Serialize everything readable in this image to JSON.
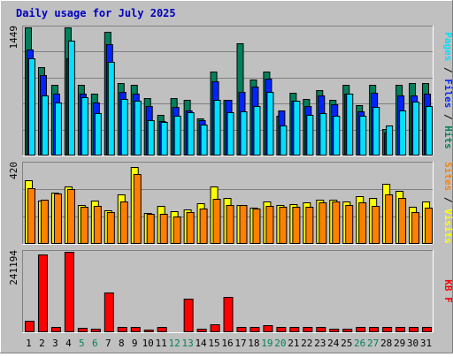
{
  "chart_data": [
    {
      "type": "bar",
      "title": "Daily usage for July 2025",
      "categories": [
        "1",
        "2",
        "3",
        "4",
        "5",
        "6",
        "7",
        "8",
        "9",
        "10",
        "11",
        "12",
        "13",
        "14",
        "15",
        "16",
        "17",
        "18",
        "19",
        "20",
        "21",
        "22",
        "23",
        "24",
        "25",
        "26",
        "27",
        "28",
        "29",
        "30",
        "31"
      ],
      "weekend_days": [
        "5",
        "6",
        "12",
        "13",
        "19",
        "20",
        "26",
        "27"
      ],
      "y_max_label": "1449",
      "ylim": [
        0,
        1449
      ],
      "legend": [
        "Pages",
        "Files",
        "Hits"
      ],
      "series": [
        {
          "name": "Hits",
          "color": "#00805c",
          "values": [
            1449,
            1000,
            800,
            1449,
            795,
            700,
            1400,
            815,
            795,
            645,
            455,
            645,
            630,
            420,
            945,
            630,
            1270,
            860,
            950,
            445,
            710,
            640,
            740,
            630,
            795,
            565,
            795,
            300,
            800,
            820,
            820
          ]
        },
        {
          "name": "Files",
          "color": "#0024ff",
          "values": [
            1200,
            905,
            700,
            1100,
            700,
            600,
            1260,
            715,
            700,
            555,
            390,
            545,
            510,
            395,
            840,
            630,
            715,
            780,
            870,
            505,
            620,
            555,
            680,
            580,
            700,
            500,
            705,
            260,
            680,
            680,
            700
          ]
        },
        {
          "name": "Pages",
          "color": "#00e0ff",
          "values": [
            1100,
            675,
            595,
            1300,
            655,
            480,
            1060,
            640,
            620,
            400,
            375,
            445,
            490,
            345,
            630,
            490,
            500,
            560,
            715,
            335,
            615,
            455,
            480,
            450,
            700,
            450,
            550,
            335,
            505,
            605,
            560
          ]
        }
      ]
    },
    {
      "type": "bar",
      "y_max_label": "420",
      "ylim": [
        0,
        420
      ],
      "legend": [
        "Sites",
        "Visits"
      ],
      "series": [
        {
          "name": "Visits",
          "color": "#ffff00",
          "values": [
            330,
            228,
            268,
            299,
            202,
            227,
            177,
            258,
            402,
            163,
            199,
            173,
            178,
            213,
            299,
            240,
            204,
            187,
            220,
            201,
            208,
            218,
            232,
            230,
            221,
            250,
            238,
            316,
            278,
            195,
            220
          ]
        },
        {
          "name": "Sites",
          "color": "#ff8000",
          "values": [
            290,
            232,
            262,
            287,
            193,
            200,
            166,
            223,
            364,
            155,
            156,
            144,
            165,
            184,
            237,
            205,
            202,
            184,
            198,
            196,
            192,
            194,
            217,
            221,
            205,
            218,
            199,
            260,
            240,
            166,
            187
          ]
        }
      ]
    },
    {
      "type": "bar",
      "y_max_label": "241194",
      "ylim": [
        0,
        241194
      ],
      "legend": [
        "KB F"
      ],
      "series": [
        {
          "name": "KB F",
          "color": "#ff0000",
          "values": [
            34000,
            232000,
            17000,
            241194,
            14000,
            10000,
            119000,
            16000,
            16000,
            9000,
            16000,
            0,
            100000,
            11000,
            23000,
            106000,
            16000,
            16000,
            20000,
            16000,
            16000,
            16000,
            16000,
            11000,
            11000,
            16000,
            16000,
            16000,
            16000,
            16000,
            16000
          ]
        }
      ]
    }
  ]
}
